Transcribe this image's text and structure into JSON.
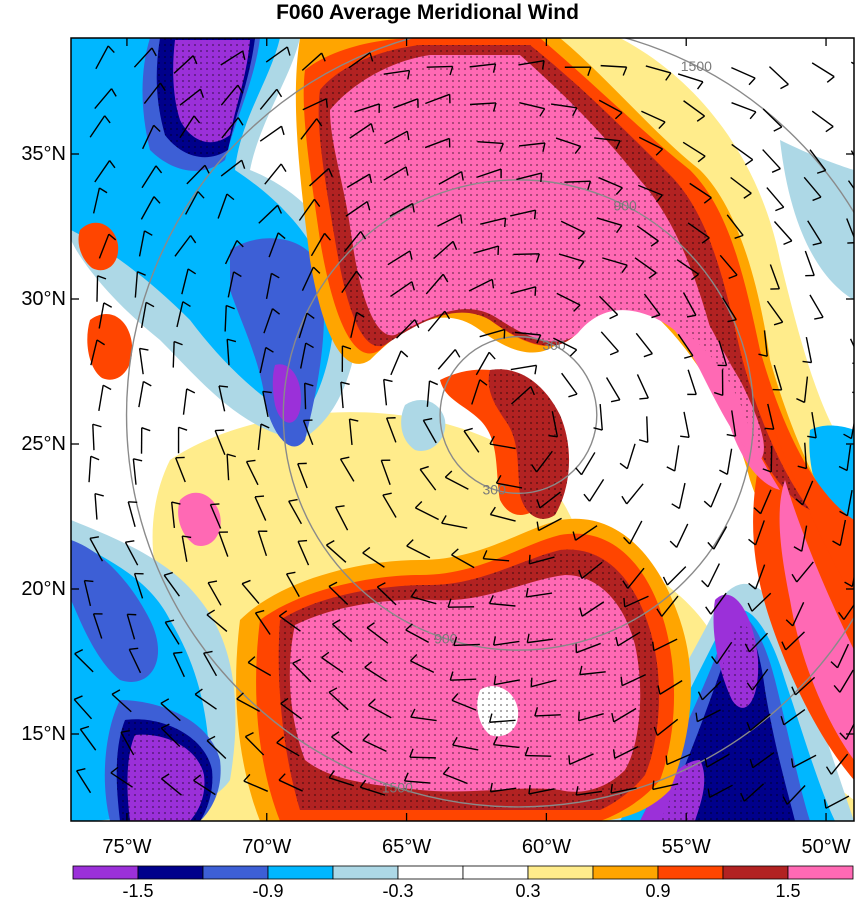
{
  "title": "F060 Average Meridional Wind",
  "lat_labels": [
    {
      "text": "35°N",
      "lat": 35
    },
    {
      "text": "30°N",
      "lat": 30
    },
    {
      "text": "25°N",
      "lat": 25
    },
    {
      "text": "20°N",
      "lat": 20
    },
    {
      "text": "15°N",
      "lat": 15
    }
  ],
  "lon_labels": [
    {
      "text": "75°W",
      "lon": -75
    },
    {
      "text": "70°W",
      "lon": -70
    },
    {
      "text": "65°W",
      "lon": -65
    },
    {
      "text": "60°W",
      "lon": -60
    },
    {
      "text": "55°W",
      "lon": -55
    },
    {
      "text": "50°W",
      "lon": -50
    }
  ],
  "colorbar": {
    "colors": [
      "#9b30d9",
      "#00008b",
      "#3d5fd6",
      "#00b7ff",
      "#add8e6",
      "#ffffff",
      "#ffffff",
      "#ffec8b",
      "#ffa500",
      "#ff4500",
      "#b22222",
      "#ff69b4"
    ],
    "labels": [
      "-1.5",
      "-0.9",
      "-0.3",
      "0.3",
      "0.9",
      "1.5"
    ]
  },
  "range_rings": {
    "center": {
      "lon": -61.0,
      "lat": 26.0
    },
    "rings": [
      {
        "radius_km": 300,
        "label": "300"
      },
      {
        "radius_km": 900,
        "label": "900"
      },
      {
        "radius_km": 1500,
        "label": "1500"
      }
    ]
  },
  "chart_data": {
    "type": "map",
    "title": "F060 Average Meridional Wind",
    "domain": {
      "lon": [
        -77.0,
        -49.0
      ],
      "lat": [
        12.0,
        39.0
      ]
    },
    "contour_levels": [
      -1.5,
      -1.2,
      -0.9,
      -0.6,
      -0.3,
      0.3,
      0.6,
      0.9,
      1.2,
      1.5
    ],
    "positive_features": [
      {
        "name": "northern band",
        "lon": -62.0,
        "lat": 33.0,
        "value": 1.8
      },
      {
        "name": "eastern spiral band",
        "lon": -54.5,
        "lat": 28.5,
        "value": 1.8
      },
      {
        "name": "southern band",
        "lon": -61.0,
        "lat": 18.0,
        "value": 1.8
      },
      {
        "name": "southeastern streak",
        "lon": -51.0,
        "lat": 20.0,
        "value": 1.6
      }
    ],
    "negative_features": [
      {
        "name": "northwest minimum",
        "lon": -73.0,
        "lat": 37.5,
        "value": -1.8
      },
      {
        "name": "west minimum",
        "lon": -68.0,
        "lat": 28.5,
        "value": -1.5
      },
      {
        "name": "southwest minimum",
        "lon": -74.5,
        "lat": 14.5,
        "value": -1.8
      },
      {
        "name": "southeast minimum",
        "lon": -54.0,
        "lat": 16.0,
        "value": -1.8
      }
    ]
  }
}
